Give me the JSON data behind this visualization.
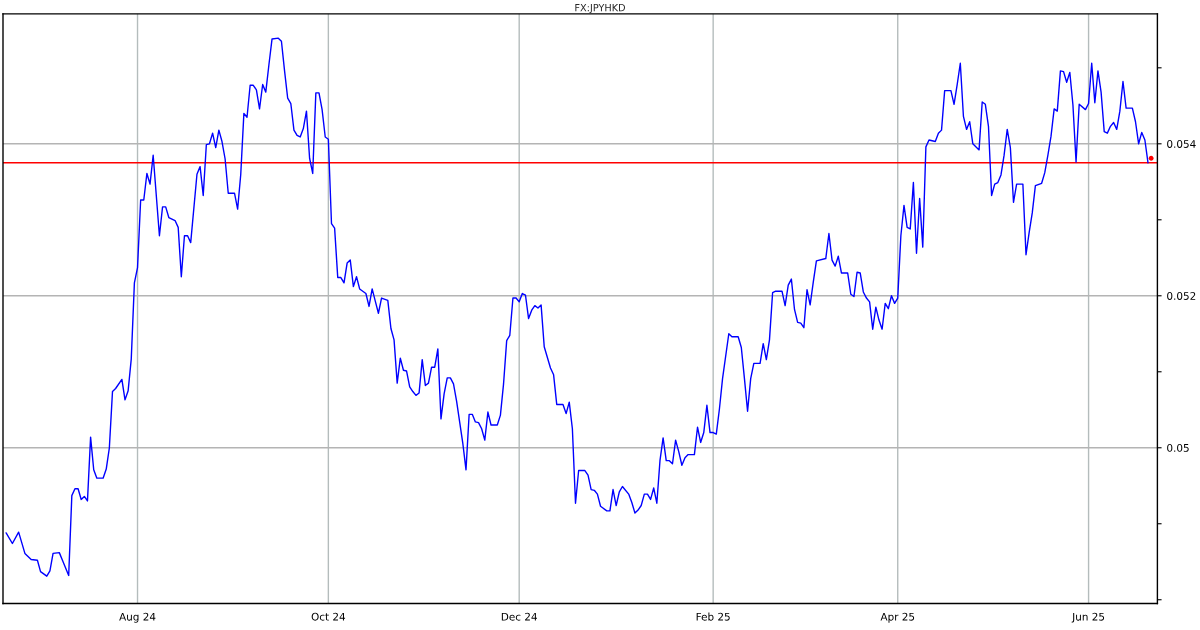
{
  "chart_data": {
    "type": "line",
    "title": "FX:JPYHKD",
    "x": [
      "2024-06-20",
      "2024-06-22",
      "2024-06-24",
      "2024-06-26",
      "2024-06-28",
      "2024-06-30",
      "2024-07-01",
      "2024-07-03",
      "2024-07-04",
      "2024-07-05",
      "2024-07-07",
      "2024-07-08",
      "2024-07-10",
      "2024-07-11",
      "2024-07-12",
      "2024-07-13",
      "2024-07-14",
      "2024-07-15",
      "2024-07-16",
      "2024-07-17",
      "2024-07-18",
      "2024-07-19",
      "2024-07-21",
      "2024-07-22",
      "2024-07-23",
      "2024-07-24",
      "2024-07-25",
      "2024-07-27",
      "2024-07-28",
      "2024-07-29",
      "2024-07-30",
      "2024-07-31",
      "2024-08-01",
      "2024-08-02",
      "2024-08-03",
      "2024-08-04",
      "2024-08-05",
      "2024-08-06",
      "2024-08-08",
      "2024-08-09",
      "2024-08-10",
      "2024-08-11",
      "2024-08-13",
      "2024-08-14",
      "2024-08-15",
      "2024-08-16",
      "2024-08-17",
      "2024-08-18",
      "2024-08-20",
      "2024-08-21",
      "2024-08-22",
      "2024-08-23",
      "2024-08-24",
      "2024-08-25",
      "2024-08-26",
      "2024-08-27",
      "2024-08-28",
      "2024-08-29",
      "2024-08-30",
      "2024-09-01",
      "2024-09-02",
      "2024-09-03",
      "2024-09-04",
      "2024-09-05",
      "2024-09-06",
      "2024-09-07",
      "2024-09-08",
      "2024-09-09",
      "2024-09-10",
      "2024-09-11",
      "2024-09-12",
      "2024-09-13",
      "2024-09-15",
      "2024-09-16",
      "2024-09-17",
      "2024-09-18",
      "2024-09-19",
      "2024-09-20",
      "2024-09-21",
      "2024-09-22",
      "2024-09-23",
      "2024-09-24",
      "2024-09-25",
      "2024-09-26",
      "2024-09-27",
      "2024-09-28",
      "2024-09-29",
      "2024-09-30",
      "2024-10-01",
      "2024-10-02",
      "2024-10-03",
      "2024-10-04",
      "2024-10-05",
      "2024-10-06",
      "2024-10-07",
      "2024-10-08",
      "2024-10-09",
      "2024-10-10",
      "2024-10-11",
      "2024-10-13",
      "2024-10-14",
      "2024-10-15",
      "2024-10-16",
      "2024-10-17",
      "2024-10-18",
      "2024-10-20",
      "2024-10-21",
      "2024-10-22",
      "2024-10-23",
      "2024-10-24",
      "2024-10-25",
      "2024-10-26",
      "2024-10-27",
      "2024-10-28",
      "2024-10-29",
      "2024-10-30",
      "2024-10-31",
      "2024-11-01",
      "2024-11-02",
      "2024-11-03",
      "2024-11-04",
      "2024-11-05",
      "2024-11-06",
      "2024-11-07",
      "2024-11-08",
      "2024-11-09",
      "2024-11-10",
      "2024-11-11",
      "2024-11-12",
      "2024-11-13",
      "2024-11-14",
      "2024-11-15",
      "2024-11-16",
      "2024-11-17",
      "2024-11-18",
      "2024-11-19",
      "2024-11-20",
      "2024-11-21",
      "2024-11-22",
      "2024-11-24",
      "2024-11-25",
      "2024-11-26",
      "2024-11-27",
      "2024-11-28",
      "2024-11-29",
      "2024-11-30",
      "2024-12-01",
      "2024-12-02",
      "2024-12-03",
      "2024-12-04",
      "2024-12-05",
      "2024-12-06",
      "2024-12-07",
      "2024-12-08",
      "2024-12-09",
      "2024-12-11",
      "2024-12-12",
      "2024-12-13",
      "2024-12-15",
      "2024-12-16",
      "2024-12-17",
      "2024-12-18",
      "2024-12-19",
      "2024-12-20",
      "2024-12-21",
      "2024-12-22",
      "2024-12-23",
      "2024-12-24",
      "2024-12-25",
      "2024-12-26",
      "2024-12-27",
      "2024-12-29",
      "2024-12-30",
      "2024-12-31",
      "2025-01-01",
      "2025-01-02",
      "2025-01-03",
      "2025-01-05",
      "2025-01-06",
      "2025-01-07",
      "2025-01-08",
      "2025-01-09",
      "2025-01-10",
      "2025-01-11",
      "2025-01-12",
      "2025-01-13",
      "2025-01-14",
      "2025-01-15",
      "2025-01-16",
      "2025-01-17",
      "2025-01-18",
      "2025-01-19",
      "2025-01-20",
      "2025-01-21",
      "2025-01-22",
      "2025-01-23",
      "2025-01-24",
      "2025-01-26",
      "2025-01-27",
      "2025-01-28",
      "2025-01-29",
      "2025-01-30",
      "2025-01-31",
      "2025-02-01",
      "2025-02-02",
      "2025-02-03",
      "2025-02-04",
      "2025-02-06",
      "2025-02-07",
      "2025-02-09",
      "2025-02-10",
      "2025-02-11",
      "2025-02-12",
      "2025-02-13",
      "2025-02-14",
      "2025-02-16",
      "2025-02-17",
      "2025-02-18",
      "2025-02-19",
      "2025-02-20",
      "2025-02-21",
      "2025-02-23",
      "2025-02-24",
      "2025-02-25",
      "2025-02-26",
      "2025-02-27",
      "2025-02-28",
      "2025-03-01",
      "2025-03-02",
      "2025-03-03",
      "2025-03-04",
      "2025-03-05",
      "2025-03-06",
      "2025-03-09",
      "2025-03-10",
      "2025-03-11",
      "2025-03-12",
      "2025-03-13",
      "2025-03-14",
      "2025-03-16",
      "2025-03-17",
      "2025-03-18",
      "2025-03-19",
      "2025-03-20",
      "2025-03-21",
      "2025-03-22",
      "2025-03-23",
      "2025-03-24",
      "2025-03-25",
      "2025-03-26",
      "2025-03-27",
      "2025-03-28",
      "2025-03-29",
      "2025-03-30",
      "2025-03-31",
      "2025-04-01",
      "2025-04-02",
      "2025-04-03",
      "2025-04-04",
      "2025-04-05",
      "2025-04-06",
      "2025-04-07",
      "2025-04-08",
      "2025-04-09",
      "2025-04-10",
      "2025-04-11",
      "2025-04-13",
      "2025-04-14",
      "2025-04-15",
      "2025-04-16",
      "2025-04-18",
      "2025-04-19",
      "2025-04-20",
      "2025-04-21",
      "2025-04-22",
      "2025-04-23",
      "2025-04-24",
      "2025-04-25",
      "2025-04-27",
      "2025-04-28",
      "2025-04-29",
      "2025-04-30",
      "2025-05-01",
      "2025-05-02",
      "2025-05-03",
      "2025-05-04",
      "2025-05-05",
      "2025-05-06",
      "2025-05-07",
      "2025-05-08",
      "2025-05-09",
      "2025-05-11",
      "2025-05-12",
      "2025-05-13",
      "2025-05-14",
      "2025-05-15",
      "2025-05-17",
      "2025-05-18",
      "2025-05-19",
      "2025-05-20",
      "2025-05-21",
      "2025-05-22",
      "2025-05-23",
      "2025-05-24",
      "2025-05-25",
      "2025-05-26",
      "2025-05-27",
      "2025-05-28",
      "2025-05-29",
      "2025-05-31",
      "2025-06-01",
      "2025-06-02",
      "2025-06-03",
      "2025-06-04",
      "2025-06-05",
      "2025-06-06",
      "2025-06-07",
      "2025-06-08",
      "2025-06-09",
      "2025-06-10",
      "2025-06-11",
      "2025-06-12",
      "2025-06-13",
      "2025-06-15",
      "2025-06-16",
      "2025-06-17",
      "2025-06-18",
      "2025-06-19",
      "2025-06-20"
    ],
    "series": [
      {
        "color": "#0000ff",
        "values": [
          0.04888,
          0.04874,
          0.04889,
          0.04861,
          0.04853,
          0.04852,
          0.04837,
          0.04831,
          0.04838,
          0.04861,
          0.04862,
          0.04852,
          0.04832,
          0.04937,
          0.04946,
          0.04946,
          0.04932,
          0.04936,
          0.0493,
          0.05014,
          0.04971,
          0.0496,
          0.0496,
          0.04972,
          0.05,
          0.05074,
          0.05078,
          0.0509,
          0.05063,
          0.05075,
          0.05117,
          0.05217,
          0.05237,
          0.05326,
          0.05326,
          0.05361,
          0.05347,
          0.05385,
          0.05279,
          0.05317,
          0.05317,
          0.05303,
          0.05299,
          0.0529,
          0.05225,
          0.05279,
          0.05279,
          0.0527,
          0.0536,
          0.0537,
          0.05332,
          0.05399,
          0.054,
          0.05414,
          0.05395,
          0.05418,
          0.05403,
          0.0538,
          0.05335,
          0.05335,
          0.05314,
          0.0536,
          0.0544,
          0.05435,
          0.05477,
          0.05477,
          0.05471,
          0.05446,
          0.05478,
          0.05468,
          0.05504,
          0.05538,
          0.05539,
          0.05535,
          0.05496,
          0.0546,
          0.05453,
          0.05418,
          0.05411,
          0.05409,
          0.0542,
          0.05443,
          0.05381,
          0.05361,
          0.05467,
          0.05467,
          0.05445,
          0.05409,
          0.05406,
          0.05295,
          0.05289,
          0.05224,
          0.05224,
          0.05217,
          0.05243,
          0.05247,
          0.05212,
          0.05225,
          0.05209,
          0.05203,
          0.05186,
          0.05209,
          0.05193,
          0.05177,
          0.05197,
          0.05194,
          0.05157,
          0.05142,
          0.05085,
          0.05118,
          0.05102,
          0.05101,
          0.0508,
          0.05074,
          0.05069,
          0.05072,
          0.05116,
          0.05082,
          0.05085,
          0.05106,
          0.05106,
          0.0513,
          0.05038,
          0.05071,
          0.05092,
          0.05092,
          0.05084,
          0.05061,
          0.05033,
          0.05005,
          0.04971,
          0.05044,
          0.05044,
          0.05034,
          0.05033,
          0.05025,
          0.0501,
          0.05047,
          0.0503,
          0.0503,
          0.05043,
          0.05084,
          0.05141,
          0.05148,
          0.05197,
          0.05197,
          0.05192,
          0.05203,
          0.05201,
          0.0517,
          0.05181,
          0.05187,
          0.05184,
          0.05188,
          0.05133,
          0.05105,
          0.05096,
          0.05057,
          0.05057,
          0.05045,
          0.0506,
          0.05025,
          0.04927,
          0.0497,
          0.0497,
          0.0497,
          0.04964,
          0.04945,
          0.04944,
          0.04939,
          0.04923,
          0.04917,
          0.04917,
          0.04945,
          0.04924,
          0.04942,
          0.04949,
          0.04939,
          0.04928,
          0.04914,
          0.04918,
          0.04924,
          0.04939,
          0.04939,
          0.04932,
          0.04947,
          0.04927,
          0.04983,
          0.05013,
          0.04983,
          0.04983,
          0.04979,
          0.0501,
          0.04995,
          0.04977,
          0.04987,
          0.04991,
          0.04991,
          0.05027,
          0.05007,
          0.0502,
          0.05056,
          0.0502,
          0.0502,
          0.05018,
          0.05051,
          0.05091,
          0.0515,
          0.05146,
          0.05146,
          0.05132,
          0.05091,
          0.05048,
          0.05091,
          0.05111,
          0.05111,
          0.05137,
          0.05116,
          0.05142,
          0.05204,
          0.05206,
          0.05206,
          0.05187,
          0.05214,
          0.05222,
          0.05182,
          0.05165,
          0.05164,
          0.05158,
          0.05208,
          0.05188,
          0.05218,
          0.05246,
          0.05249,
          0.05282,
          0.05247,
          0.05239,
          0.05252,
          0.0523,
          0.0523,
          0.05202,
          0.05199,
          0.05231,
          0.0523,
          0.05205,
          0.05197,
          0.05192,
          0.05156,
          0.05185,
          0.05168,
          0.05156,
          0.0519,
          0.05183,
          0.052,
          0.0519,
          0.05197,
          0.05279,
          0.05319,
          0.0529,
          0.05288,
          0.05349,
          0.05256,
          0.05328,
          0.05264,
          0.05396,
          0.05405,
          0.05403,
          0.05414,
          0.05418,
          0.0547,
          0.0547,
          0.05452,
          0.05478,
          0.05506,
          0.05436,
          0.05419,
          0.05429,
          0.054,
          0.05392,
          0.05455,
          0.05452,
          0.05423,
          0.05332,
          0.05347,
          0.05349,
          0.05359,
          0.05385,
          0.05419,
          0.05395,
          0.05323,
          0.05347,
          0.05347,
          0.05254,
          0.05283,
          0.05309,
          0.05345,
          0.05348,
          0.05362,
          0.05385,
          0.0541,
          0.05446,
          0.05443,
          0.05496,
          0.05495,
          0.05481,
          0.05494,
          0.05451,
          0.05376,
          0.05452,
          0.05445,
          0.05453,
          0.05506,
          0.05454,
          0.05496,
          0.05468,
          0.05416,
          0.05414,
          0.05423,
          0.05428,
          0.05419,
          0.05443,
          0.05482,
          0.05447,
          0.05447,
          0.05429,
          0.054,
          0.05415,
          0.05405,
          0.05375
        ]
      },
      {
        "type": "scatter",
        "color": "#ff0000",
        "x": [
          "2025-06-21"
        ],
        "values": [
          0.05381
        ]
      }
    ],
    "xlim": [
      "2024-06-19",
      "2025-06-23"
    ],
    "ylim": [
      0.04795,
      0.05571
    ],
    "xticks": [
      {
        "value": "2024-08-01",
        "label": "Aug 24"
      },
      {
        "value": "2024-10-01",
        "label": "Oct 24"
      },
      {
        "value": "2024-12-01",
        "label": "Dec 24"
      },
      {
        "value": "2025-02-01",
        "label": "Feb 25"
      },
      {
        "value": "2025-04-01",
        "label": "Apr 25"
      },
      {
        "value": "2025-06-01",
        "label": "Jun 25"
      }
    ],
    "yticks": [
      {
        "value": 0.048,
        "label": null
      },
      {
        "value": 0.049,
        "label": null
      },
      0.05,
      {
        "value": 0.051,
        "label": null
      },
      0.052,
      {
        "value": 0.053,
        "label": null
      },
      0.054,
      {
        "value": 0.055,
        "label": null
      }
    ],
    "grid": true,
    "ref_lines": [
      {
        "axis": "y",
        "value": 0.05375,
        "color": "#ff0000"
      }
    ]
  }
}
